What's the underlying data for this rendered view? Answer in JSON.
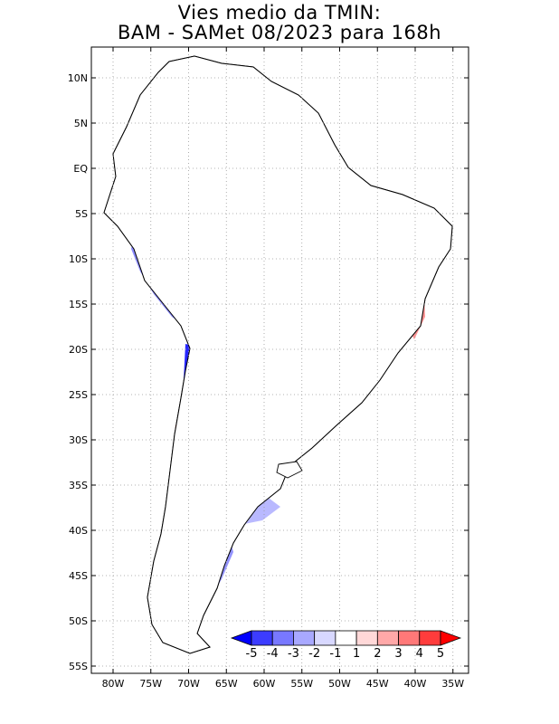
{
  "title": {
    "line1": "Vies medio da TMIN:",
    "line2": "BAM - SAMet 08/2023  para 168h"
  },
  "lat_ticks": [
    "10N",
    "5N",
    "EQ",
    "5S",
    "10S",
    "15S",
    "20S",
    "25S",
    "30S",
    "35S",
    "40S",
    "45S",
    "50S",
    "55S"
  ],
  "lon_ticks": [
    "80W",
    "75W",
    "70W",
    "65W",
    "60W",
    "55W",
    "50W",
    "45W",
    "40W",
    "35W"
  ],
  "colorbar": {
    "labels": [
      "-5",
      "-4",
      "-3",
      "-2",
      "-1",
      "1",
      "2",
      "3",
      "4",
      "5"
    ],
    "colors": [
      "#0000ff",
      "#3c3cff",
      "#7878ff",
      "#a8a8ff",
      "#d8d8ff",
      "#ffffff",
      "#ffd8d8",
      "#ffa8a8",
      "#ff7878",
      "#ff3c3c",
      "#ff0000"
    ]
  }
}
